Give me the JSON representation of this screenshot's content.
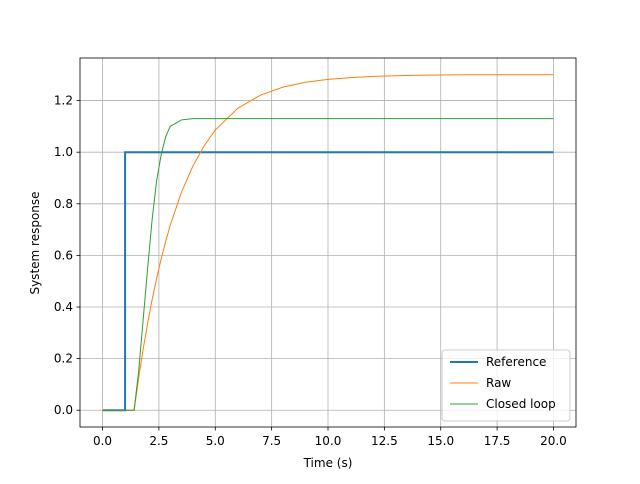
{
  "chart_data": {
    "type": "line",
    "xlabel": "Time (s)",
    "ylabel": "System response",
    "x": [
      0,
      1,
      1,
      1.4,
      1.6,
      1.8,
      2.0,
      2.2,
      2.4,
      2.6,
      2.8,
      3.0,
      3.5,
      4,
      4.5,
      5,
      6,
      7,
      8,
      9,
      10,
      11,
      12,
      13,
      14,
      15,
      16,
      17,
      18,
      19,
      20
    ],
    "series": [
      {
        "name": "Reference",
        "color": "#1f77b4",
        "width": 2,
        "values": [
          0,
          0,
          1,
          1,
          1,
          1,
          1,
          1,
          1,
          1,
          1,
          1,
          1,
          1,
          1,
          1,
          1,
          1,
          1,
          1,
          1,
          1,
          1,
          1,
          1,
          1,
          1,
          1,
          1,
          1,
          1
        ]
      },
      {
        "name": "Raw",
        "color": "#ff7f0e",
        "width": 1,
        "values": [
          0,
          0,
          0,
          0,
          0.124,
          0.236,
          0.337,
          0.429,
          0.511,
          0.586,
          0.654,
          0.716,
          0.845,
          0.945,
          1.024,
          1.086,
          1.17,
          1.221,
          1.252,
          1.271,
          1.282,
          1.289,
          1.294,
          1.296,
          1.298,
          1.299,
          1.3,
          1.3,
          1.3,
          1.3,
          1.3
        ]
      },
      {
        "name": "Closed loop",
        "color": "#2ca02c",
        "width": 1,
        "values": [
          0,
          0,
          0,
          0,
          0.15,
          0.35,
          0.55,
          0.74,
          0.89,
          0.99,
          1.06,
          1.1,
          1.125,
          1.13,
          1.13,
          1.13,
          1.13,
          1.13,
          1.13,
          1.13,
          1.13,
          1.13,
          1.13,
          1.13,
          1.13,
          1.13,
          1.13,
          1.13,
          1.13,
          1.13,
          1.13
        ]
      }
    ],
    "xlim": [
      -1,
      21
    ],
    "ylim": [
      -0.065,
      1.365
    ],
    "xticks": [
      {
        "value": 0,
        "label": "0.0"
      },
      {
        "value": 2.5,
        "label": "2.5"
      },
      {
        "value": 5,
        "label": "5.0"
      },
      {
        "value": 7.5,
        "label": "7.5"
      },
      {
        "value": 10,
        "label": "10.0"
      },
      {
        "value": 12.5,
        "label": "12.5"
      },
      {
        "value": 15,
        "label": "15.0"
      },
      {
        "value": 17.5,
        "label": "17.5"
      },
      {
        "value": 20,
        "label": "20.0"
      }
    ],
    "yticks": [
      {
        "value": 0,
        "label": "0.0"
      },
      {
        "value": 0.2,
        "label": "0.2"
      },
      {
        "value": 0.4,
        "label": "0.4"
      },
      {
        "value": 0.6,
        "label": "0.6"
      },
      {
        "value": 0.8,
        "label": "0.8"
      },
      {
        "value": 1,
        "label": "1.0"
      },
      {
        "value": 1.2,
        "label": "1.2"
      }
    ],
    "grid": true,
    "legend": "lower right"
  }
}
